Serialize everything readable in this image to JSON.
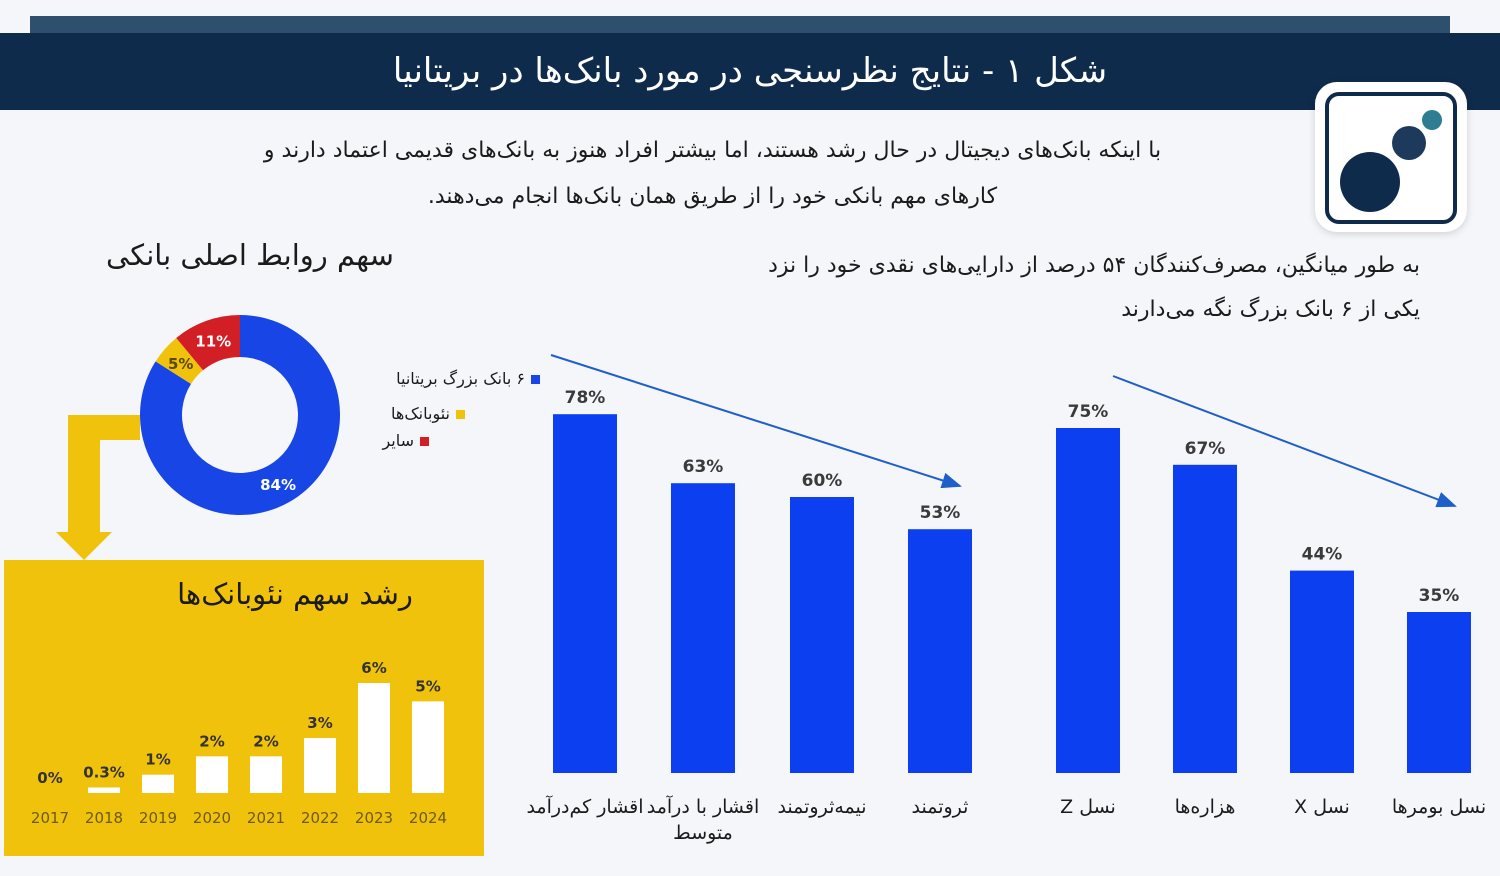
{
  "header": {
    "title": "شکل ۱ - نتایج نظرسنجی در مورد بانک‌ها در بریتانیا"
  },
  "intro_text": {
    "line1": "با اینکه بانک‌های دیجیتال در حال رشد هستند، اما بیشتر افراد هنوز به بانک‌های قدیمی اعتماد دارند و",
    "line2": "کارهای مهم بانکی خود را از طریق همان بانک‌ها انجام می‌دهند."
  },
  "bars_description": {
    "line1": "به طور میانگین، مصرف‌کنندگان ۵۴ درصد از دارایی‌های نقدی خود را نزد",
    "line2": "یکی از ۶ بانک بزرگ نگه می‌دارند"
  },
  "colors": {
    "navy": "#0f2b4c",
    "blue": "#0c3ff0",
    "yellow": "#f1c20c",
    "red": "#d21f26",
    "teal": "#2e7d93"
  },
  "chart_data": [
    {
      "type": "pie",
      "title": "سهم روابط اصلی بانکی",
      "slices": [
        {
          "label": "۶ بانک بزرگ بریتانیا",
          "value": 84,
          "value_label": "84%",
          "color": "#1846e6"
        },
        {
          "label": "نئوبانک‌ها",
          "value": 5,
          "value_label": "5%",
          "color": "#f1c20c"
        },
        {
          "label": "سایر",
          "value": 11,
          "value_label": "11%",
          "color": "#d21f26"
        }
      ],
      "legend_position": "right"
    },
    {
      "type": "bar",
      "title": "رشد سهم نئوبانک‌ها",
      "categories": [
        "2017",
        "2018",
        "2019",
        "2020",
        "2021",
        "2022",
        "2023",
        "2024"
      ],
      "values": [
        0,
        0.3,
        1,
        2,
        2,
        3,
        6,
        5
      ],
      "value_labels": [
        "0%",
        "0.3%",
        "1%",
        "2%",
        "2%",
        "3%",
        "6%",
        "5%"
      ],
      "ylim": [
        0,
        6
      ]
    },
    {
      "type": "bar",
      "categories": [
        "اقشار کم‌درآمد",
        "اقشار با درآمد متوسط",
        "نیمه‌ثروتمند",
        "ثروتمند"
      ],
      "values": [
        78,
        63,
        60,
        53
      ],
      "value_labels": [
        "78%",
        "63%",
        "60%",
        "53%"
      ],
      "ylim": [
        0,
        100
      ]
    },
    {
      "type": "bar",
      "categories": [
        "نسل Z",
        "هزاره‌ها",
        "نسل X",
        "نسل بومرها"
      ],
      "values": [
        75,
        67,
        44,
        35
      ],
      "value_labels": [
        "75%",
        "67%",
        "44%",
        "35%"
      ],
      "ylim": [
        0,
        100
      ]
    }
  ]
}
